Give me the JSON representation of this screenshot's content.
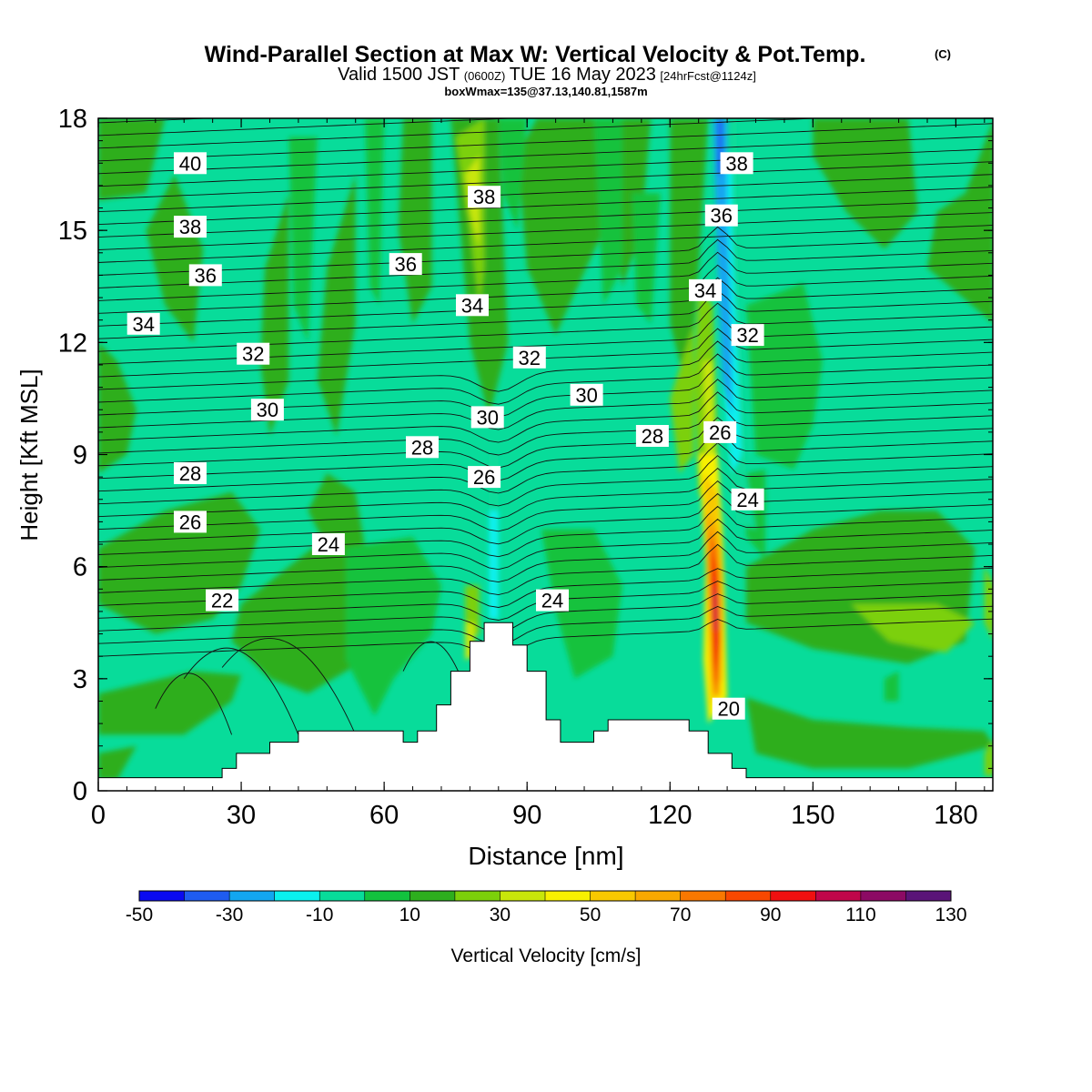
{
  "header": {
    "title": "Wind-Parallel Section at Max W: Vertical Velocity & Pot.Temp.",
    "title_mark": "(C)",
    "valid_prefix": "Valid 1500 JST",
    "valid_utc": "(0600Z)",
    "valid_date": "TUE 16 May 2023",
    "forecast": "[24hrFcst@1124z]",
    "boxwmax": "boxWmax=135@37.13,140.81,1587m"
  },
  "chart_data": {
    "type": "heatmap",
    "xlabel": "Distance [nm]",
    "ylabel": "Height [Kft MSL]",
    "xlim": [
      0,
      188
    ],
    "ylim": [
      0,
      18
    ],
    "x_ticks": [
      "0",
      "30",
      "60",
      "90",
      "120",
      "150",
      "180"
    ],
    "y_ticks": [
      "0",
      "3",
      "6",
      "9",
      "12",
      "15",
      "18"
    ],
    "colorbar": {
      "label": "Vertical Velocity [cm/s]",
      "tick_labels": [
        "-50",
        "-30",
        "-10",
        "10",
        "30",
        "50",
        "70",
        "90",
        "110",
        "130"
      ],
      "levels": [
        -50,
        -40,
        -30,
        -20,
        -10,
        0,
        10,
        20,
        30,
        40,
        50,
        60,
        70,
        80,
        90,
        100,
        110,
        120,
        130
      ],
      "colors": [
        "#0a0af0",
        "#1f5cf0",
        "#12a6f0",
        "#0af0ee",
        "#08dc9a",
        "#12c23e",
        "#2eae1e",
        "#7cd00a",
        "#c8e60a",
        "#f8f000",
        "#f8c800",
        "#f8a800",
        "#f87800",
        "#f84800",
        "#f01010",
        "#c0064a",
        "#8c0a64",
        "#5a1478"
      ]
    },
    "theta_labels": [
      {
        "text": "40",
        "x": 19.3,
        "y": 16.8
      },
      {
        "text": "38",
        "x": 19.3,
        "y": 15.1
      },
      {
        "text": "36",
        "x": 22.5,
        "y": 13.8
      },
      {
        "text": "34",
        "x": 9.5,
        "y": 12.5
      },
      {
        "text": "32",
        "x": 32.5,
        "y": 11.7
      },
      {
        "text": "30",
        "x": 35.5,
        "y": 10.2
      },
      {
        "text": "28",
        "x": 19.3,
        "y": 8.5
      },
      {
        "text": "26",
        "x": 19.3,
        "y": 7.2
      },
      {
        "text": "24",
        "x": 48.3,
        "y": 6.6
      },
      {
        "text": "22",
        "x": 26,
        "y": 5.1
      },
      {
        "text": "38",
        "x": 81,
        "y": 15.9
      },
      {
        "text": "36",
        "x": 64.5,
        "y": 14.1
      },
      {
        "text": "34",
        "x": 78.5,
        "y": 13
      },
      {
        "text": "32",
        "x": 90.5,
        "y": 11.6
      },
      {
        "text": "30",
        "x": 102.5,
        "y": 10.6
      },
      {
        "text": "30",
        "x": 81.7,
        "y": 10
      },
      {
        "text": "28",
        "x": 68,
        "y": 9.2
      },
      {
        "text": "28",
        "x": 116.3,
        "y": 9.5
      },
      {
        "text": "26",
        "x": 81,
        "y": 8.4
      },
      {
        "text": "24",
        "x": 95.3,
        "y": 5.1
      },
      {
        "text": "38",
        "x": 134,
        "y": 16.8
      },
      {
        "text": "36",
        "x": 130.8,
        "y": 15.4
      },
      {
        "text": "34",
        "x": 127.4,
        "y": 13.4
      },
      {
        "text": "32",
        "x": 136.3,
        "y": 12.2
      },
      {
        "text": "26",
        "x": 130.5,
        "y": 9.6
      },
      {
        "text": "24",
        "x": 136.3,
        "y": 7.8
      },
      {
        "text": "20",
        "x": 132.3,
        "y": 2.2
      }
    ]
  }
}
